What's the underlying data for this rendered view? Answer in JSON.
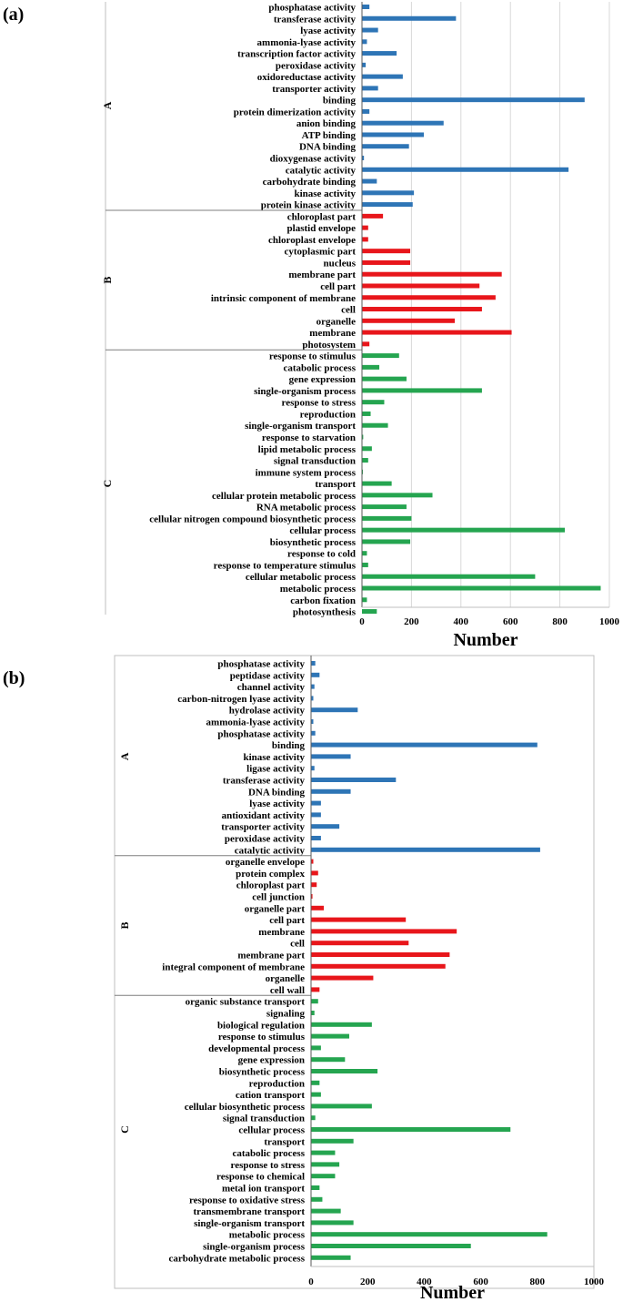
{
  "colors": {
    "A": "#2e75b6",
    "B": "#e8161b",
    "C": "#25a550"
  },
  "chart_data": [
    {
      "panel_label": "(a)",
      "type": "bar",
      "orientation": "horizontal",
      "xlabel": "Number",
      "xlim": [
        0,
        1000
      ],
      "xticks": [
        0,
        200,
        400,
        600,
        800,
        1000
      ],
      "grid": true,
      "groups": [
        {
          "name": "A",
          "categories": [
            "phosphatase activity",
            "transferase activity",
            "lyase activity",
            "ammonia-lyase activity",
            "transcription factor activity",
            "peroxidase activity",
            "oxidoreductase activity",
            "transporter activity",
            "binding",
            "protein dimerization activity",
            "anion binding",
            "ATP binding",
            "DNA binding",
            "dioxygenase activity",
            "catalytic activity",
            "carbohydrate binding",
            "kinase activity",
            "protein kinase activity"
          ],
          "values": [
            30,
            380,
            65,
            20,
            140,
            15,
            165,
            65,
            900,
            30,
            330,
            250,
            190,
            8,
            835,
            60,
            210,
            205
          ]
        },
        {
          "name": "B",
          "categories": [
            "chloroplast part",
            "plastid envelope",
            "chloroplast envelope",
            "cytoplasmic part",
            "nucleus",
            "membrane part",
            "cell part",
            "intrinsic component of membrane",
            "cell",
            "organelle",
            "membrane",
            "photosystem"
          ],
          "values": [
            85,
            25,
            25,
            195,
            195,
            565,
            475,
            540,
            485,
            375,
            605,
            30
          ]
        },
        {
          "name": "C",
          "categories": [
            "response to stimulus",
            "catabolic process",
            "gene expression",
            "single-organism process",
            "response to stress",
            "reproduction",
            "single-organism transport",
            "response to starvation",
            "lipid metabolic process",
            "signal transduction",
            "immune system process",
            "transport",
            "cellular protein metabolic process",
            "RNA metabolic process",
            "cellular nitrogen compound biosynthetic process",
            "cellular process",
            "biosynthetic process",
            "response to cold",
            "response to temperature stimulus",
            "cellular metabolic process",
            "metabolic process",
            "carbon fixation",
            "photosynthesis"
          ],
          "values": [
            150,
            70,
            180,
            485,
            90,
            35,
            105,
            5,
            40,
            25,
            3,
            120,
            285,
            180,
            200,
            820,
            195,
            20,
            25,
            700,
            965,
            20,
            60
          ]
        }
      ]
    },
    {
      "panel_label": "(b)",
      "type": "bar",
      "orientation": "horizontal",
      "xlabel": "Number",
      "xlim": [
        0,
        1000
      ],
      "xticks": [
        0,
        200,
        400,
        600,
        800,
        1000
      ],
      "grid": false,
      "groups": [
        {
          "name": "A",
          "categories": [
            "phosphatase activity",
            "peptidase activity",
            "channel activity",
            "carbon-nitrogen lyase activity",
            "hydrolase activity",
            "ammonia-lyase activity",
            "phosphatase activity",
            "binding",
            "kinase activity",
            "ligase activity",
            "transferase activity",
            "DNA binding",
            "lyase activity",
            "antioxidant activity",
            "transporter activity",
            "peroxidase activity",
            "catalytic activity"
          ],
          "values": [
            15,
            30,
            12,
            8,
            165,
            8,
            15,
            800,
            140,
            12,
            300,
            140,
            35,
            35,
            100,
            35,
            810
          ]
        },
        {
          "name": "B",
          "categories": [
            "organelle envelope",
            "protein complex",
            "chloroplast part",
            "cell junction",
            "organelle part",
            "cell part",
            "membrane",
            "cell",
            "membrane part",
            "integral component of membrane",
            "organelle",
            "cell wall"
          ],
          "values": [
            8,
            25,
            20,
            5,
            45,
            335,
            515,
            345,
            490,
            475,
            220,
            30
          ]
        },
        {
          "name": "C",
          "categories": [
            "organic substance transport",
            "signaling",
            "biological regulation",
            "response to stimulus",
            "developmental process",
            "gene expression",
            "biosynthetic process",
            "reproduction",
            "cation transport",
            "cellular biosynthetic process",
            "signal transduction",
            "cellular process",
            "transport",
            "catabolic process",
            "response to stress",
            "response to chemical",
            "metal ion transport",
            "response to oxidative stress",
            "transmembrane transport",
            "single-organism transport",
            "metabolic process",
            "single-organism process",
            "carbohydrate metabolic process"
          ],
          "values": [
            25,
            12,
            215,
            135,
            35,
            120,
            235,
            30,
            35,
            215,
            15,
            705,
            150,
            85,
            100,
            85,
            30,
            40,
            105,
            150,
            835,
            565,
            140
          ]
        }
      ]
    }
  ]
}
